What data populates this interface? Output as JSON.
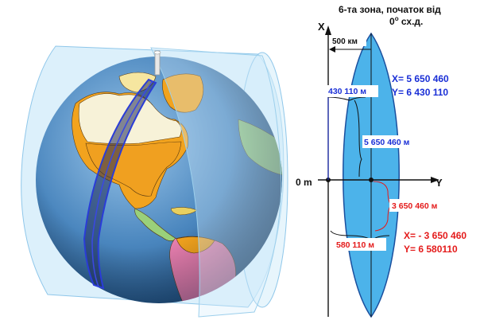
{
  "zone": {
    "title_line1": "6-та  зона, початок від",
    "title_line2": "0",
    "title_sup": "o",
    "title_line2_rest": " сх.д."
  },
  "axes": {
    "x_label": "X",
    "y_label": "Y",
    "origin_label": "0 m"
  },
  "measure_500": "500 км",
  "point_blue": {
    "x_coord": "X= 5 650 460",
    "y_coord": "Y= 6 430 110",
    "y_offset_label": "430 110 м",
    "x_offset_label": "5 650 460 м",
    "color": "#1a2fd6"
  },
  "point_red": {
    "x_coord": "X= - 3 650 460",
    "y_coord": "Y= 6 580110",
    "x_offset_label": "3 650 460 м",
    "y_offset_label": "580 110 м",
    "color": "#e41b1b"
  },
  "colors": {
    "zone_fill": "#4cb3ea",
    "ocean": "#4a86be",
    "land": "#f2a31e",
    "cylinder": "#bfe3f7"
  },
  "icons": {
    "globe": "globe-illustration"
  }
}
